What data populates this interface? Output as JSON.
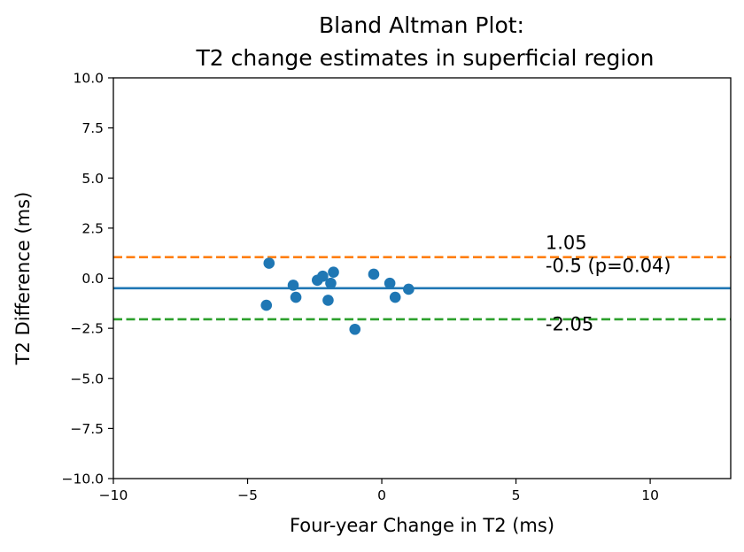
{
  "chart_data": {
    "type": "scatter",
    "title_lines": [
      "Bland Altman Plot:",
      "T2 change estimates in superficial region"
    ],
    "xlabel": "Four-year Change in T2 (ms)",
    "ylabel": "T2 Difference (ms)",
    "xlim": [
      -10,
      13
    ],
    "ylim": [
      -10,
      10
    ],
    "xticks": [
      -10,
      -5,
      0,
      5,
      10
    ],
    "yticks": [
      -10.0,
      -7.5,
      -5.0,
      -2.5,
      0.0,
      2.5,
      5.0,
      7.5,
      10.0
    ],
    "xtick_labels": [
      "−10",
      "−5",
      "0",
      "5",
      "10"
    ],
    "ytick_labels": [
      "−10.0",
      "−7.5",
      "−5.0",
      "−2.5",
      "0.0",
      "2.5",
      "5.0",
      "7.5",
      "10.0"
    ],
    "grid": false,
    "points": [
      {
        "x": -4.2,
        "y": 0.75
      },
      {
        "x": -4.3,
        "y": -1.35
      },
      {
        "x": -3.3,
        "y": -0.35
      },
      {
        "x": -3.2,
        "y": -0.95
      },
      {
        "x": -2.4,
        "y": -0.1
      },
      {
        "x": -2.2,
        "y": 0.1
      },
      {
        "x": -2.0,
        "y": -1.1
      },
      {
        "x": -1.9,
        "y": -0.25
      },
      {
        "x": -1.8,
        "y": 0.3
      },
      {
        "x": -1.0,
        "y": -2.55
      },
      {
        "x": -0.3,
        "y": 0.2
      },
      {
        "x": 0.3,
        "y": -0.25
      },
      {
        "x": 0.5,
        "y": -0.95
      },
      {
        "x": 1.0,
        "y": -0.55
      }
    ],
    "point_color": "#1f77b4",
    "lines": [
      {
        "y": 1.05,
        "style": "dashed",
        "color": "#ff7f0e",
        "label": "1.05"
      },
      {
        "y": -0.5,
        "style": "solid",
        "color": "#1f77b4",
        "label": "-0.5 (p=0.04)"
      },
      {
        "y": -2.05,
        "style": "dashed",
        "color": "#2ca02c",
        "label": "-2.05"
      }
    ],
    "annotation_x": 6.1,
    "annotation_y_values": [
      1.45,
      0.3,
      -2.6
    ]
  }
}
